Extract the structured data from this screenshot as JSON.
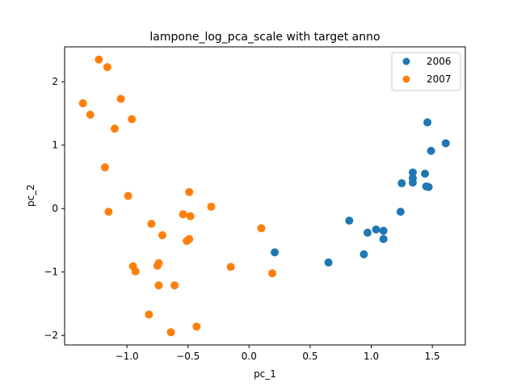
{
  "chart_data": {
    "type": "scatter",
    "title": "lampone_log_pca_scale with target anno",
    "xlabel": "pc_1",
    "ylabel": "pc_2",
    "xlim": [
      -1.51,
      1.77
    ],
    "ylim": [
      -2.15,
      2.55
    ],
    "xticks": [
      -1.0,
      -0.5,
      0.0,
      0.5,
      1.0,
      1.5
    ],
    "xtick_labels": [
      "−1.0",
      "−0.5",
      "0.0",
      "0.5",
      "1.0",
      "1.5"
    ],
    "yticks": [
      -2,
      -1,
      0,
      1,
      2
    ],
    "ytick_labels": [
      "−2",
      "−1",
      "0",
      "1",
      "2"
    ],
    "grid": false,
    "legend_position": "top-right",
    "series": [
      {
        "name": "2006",
        "color": "#1f77b4",
        "points": [
          [
            1.46,
            1.36
          ],
          [
            1.61,
            1.03
          ],
          [
            1.49,
            0.91
          ],
          [
            1.34,
            0.57
          ],
          [
            1.44,
            0.55
          ],
          [
            1.34,
            0.48
          ],
          [
            1.25,
            0.4
          ],
          [
            1.34,
            0.41
          ],
          [
            1.45,
            0.35
          ],
          [
            1.47,
            0.34
          ],
          [
            1.24,
            -0.05
          ],
          [
            0.82,
            -0.19
          ],
          [
            1.04,
            -0.33
          ],
          [
            1.1,
            -0.35
          ],
          [
            0.97,
            -0.38
          ],
          [
            1.1,
            -0.48
          ],
          [
            0.94,
            -0.72
          ],
          [
            0.65,
            -0.85
          ],
          [
            0.21,
            -0.69
          ]
        ]
      },
      {
        "name": "2007",
        "color": "#ff7f0e",
        "points": [
          [
            -1.23,
            2.35
          ],
          [
            -1.16,
            2.23
          ],
          [
            -1.05,
            1.73
          ],
          [
            -1.36,
            1.66
          ],
          [
            -1.3,
            1.48
          ],
          [
            -0.96,
            1.41
          ],
          [
            -1.1,
            1.26
          ],
          [
            -1.18,
            0.65
          ],
          [
            -0.49,
            0.26
          ],
          [
            -0.99,
            0.2
          ],
          [
            -0.31,
            0.03
          ],
          [
            -1.15,
            -0.05
          ],
          [
            -0.54,
            -0.09
          ],
          [
            -0.48,
            -0.12
          ],
          [
            -0.8,
            -0.24
          ],
          [
            -0.71,
            -0.42
          ],
          [
            0.1,
            -0.31
          ],
          [
            -0.49,
            -0.48
          ],
          [
            -0.51,
            -0.51
          ],
          [
            -0.95,
            -0.91
          ],
          [
            -0.74,
            -0.86
          ],
          [
            -0.75,
            -0.9
          ],
          [
            -0.93,
            -0.99
          ],
          [
            -0.15,
            -0.92
          ],
          [
            0.19,
            -1.02
          ],
          [
            -0.74,
            -1.21
          ],
          [
            -0.61,
            -1.21
          ],
          [
            -0.82,
            -1.67
          ],
          [
            -0.43,
            -1.86
          ],
          [
            -0.64,
            -1.95
          ]
        ]
      }
    ]
  }
}
